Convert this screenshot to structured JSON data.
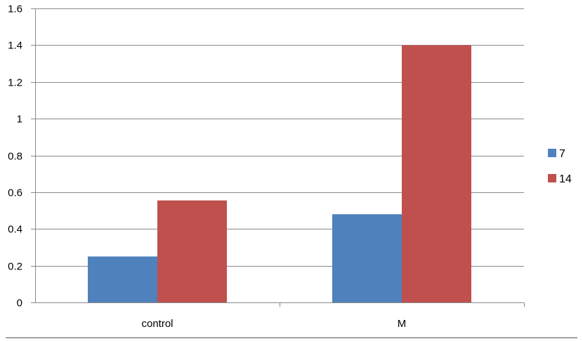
{
  "chart_data": {
    "type": "bar",
    "categories": [
      "control",
      "M"
    ],
    "series": [
      {
        "name": "7",
        "values": [
          0.25,
          0.48
        ],
        "color": "#4F81BD"
      },
      {
        "name": "14",
        "values": [
          0.555,
          1.4
        ],
        "color": "#C0504D"
      }
    ],
    "ylim": [
      0,
      1.6
    ],
    "yticks": [
      "0",
      "0.2",
      "0.4",
      "0.6",
      "0.8",
      "1",
      "1.2",
      "1.4",
      "1.6"
    ],
    "xlabel": "",
    "ylabel": "",
    "title": "",
    "grid": true,
    "legend": "right"
  }
}
